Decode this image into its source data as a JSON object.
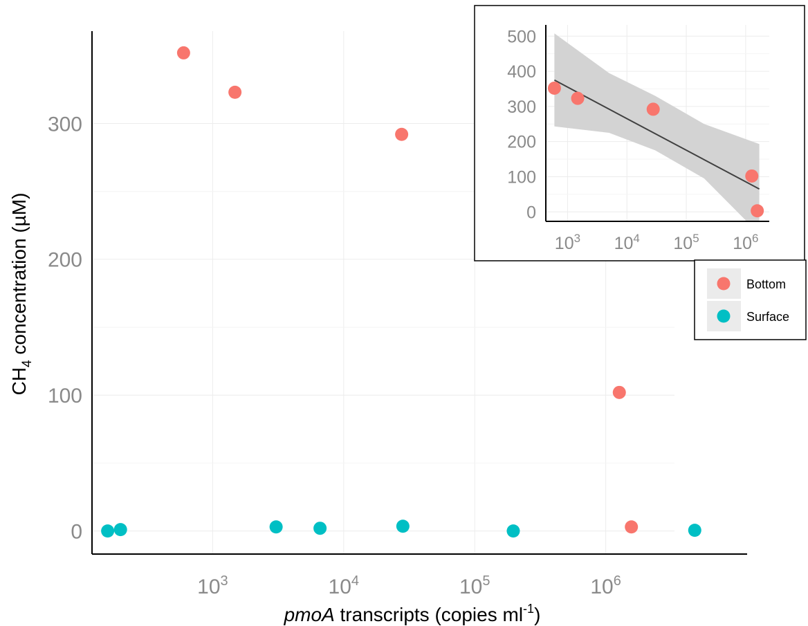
{
  "chart_data": [
    {
      "type": "scatter",
      "xlabel": "pmoA transcripts (copies ml-1)",
      "xlabel_parts": {
        "italic": "pmoA",
        "main": " transcripts (copies ml",
        "sup": "-1",
        "close": ")"
      },
      "ylabel": "CH4 concentration (µM)",
      "ylabel_parts": {
        "pre": "CH",
        "sub": "4",
        "post": " concentration (µM)"
      },
      "x_scale": "log10",
      "xlim": [
        120,
        12000000
      ],
      "ylim": [
        -17,
        368
      ],
      "xticks": [
        {
          "base": "10",
          "exp": "3",
          "value": 1000
        },
        {
          "base": "10",
          "exp": "4",
          "value": 10000
        },
        {
          "base": "10",
          "exp": "5",
          "value": 100000
        },
        {
          "base": "10",
          "exp": "6",
          "value": 1000000
        }
      ],
      "yticks": [
        0,
        100,
        200,
        300
      ],
      "grid": true,
      "series": [
        {
          "name": "Bottom",
          "color": "#F8766D",
          "points": [
            [
              600,
              352
            ],
            [
              1480,
              323
            ],
            [
              27700,
              292
            ],
            [
              1270000,
              102
            ],
            [
              1570000,
              3
            ]
          ]
        },
        {
          "name": "Surface",
          "color": "#00BFC4",
          "points": [
            [
              158,
              0
            ],
            [
              198,
              1
            ],
            [
              3050,
              3
            ],
            [
              6600,
              2
            ],
            [
              28300,
              3.5
            ],
            [
              197000,
              0
            ],
            [
              4780000,
              0.5
            ]
          ]
        }
      ]
    },
    {
      "type": "scatter",
      "panel": "inset",
      "x_scale": "log10",
      "xlim": [
        430,
        2500000
      ],
      "ylim": [
        -27,
        532
      ],
      "xticks": [
        {
          "base": "10",
          "exp": "3",
          "value": 1000
        },
        {
          "base": "10",
          "exp": "4",
          "value": 10000
        },
        {
          "base": "10",
          "exp": "5",
          "value": 100000
        },
        {
          "base": "10",
          "exp": "6",
          "value": 1000000
        }
      ],
      "yticks": [
        0,
        100,
        200,
        300,
        400,
        500
      ],
      "grid": true,
      "series": [
        {
          "name": "Bottom",
          "color": "#F8766D",
          "points": [
            [
              600,
              352
            ],
            [
              1480,
              323
            ],
            [
              27700,
              292
            ],
            [
              1270000,
              102
            ],
            [
              1570000,
              3
            ]
          ]
        }
      ],
      "fit": {
        "type": "linear regression on log10(x)",
        "color": "#404040",
        "line": [
          [
            600,
            375
          ],
          [
            1700000,
            65
          ]
        ],
        "band_color": "#d3d3d3",
        "band_upper": [
          [
            600,
            508
          ],
          [
            5000,
            395
          ],
          [
            30000,
            330
          ],
          [
            200000,
            250
          ],
          [
            1700000,
            193
          ]
        ],
        "band_lower": [
          [
            600,
            243
          ],
          [
            5000,
            225
          ],
          [
            30000,
            175
          ],
          [
            200000,
            95
          ],
          [
            1700000,
            -63
          ]
        ]
      }
    }
  ],
  "legend": {
    "placement": "right, below inset",
    "items": [
      {
        "label": "Bottom",
        "color": "#F8766D"
      },
      {
        "label": "Surface",
        "color": "#00BFC4"
      }
    ]
  }
}
